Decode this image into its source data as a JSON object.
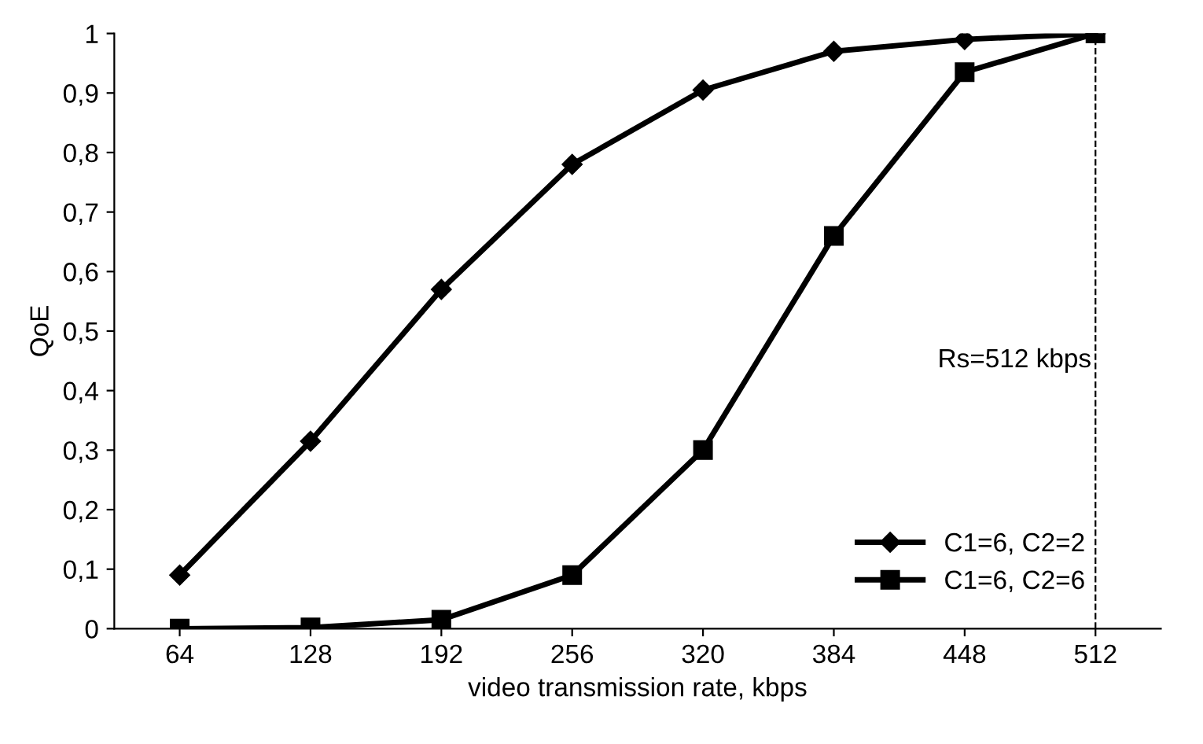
{
  "chart_data": {
    "type": "line",
    "xlabel": "video transmission rate, kbps",
    "ylabel": "QoE",
    "x": [
      64,
      128,
      192,
      256,
      320,
      384,
      448,
      512
    ],
    "series": [
      {
        "name": "C1=6, C2=2",
        "color": "#000000",
        "marker": "diamond",
        "values": [
          0.09,
          0.315,
          0.57,
          0.78,
          0.905,
          0.97,
          0.99,
          1.0
        ]
      },
      {
        "name": "C1=6, C2=6",
        "color": "#000000",
        "marker": "square",
        "values": [
          0.0,
          0.002,
          0.015,
          0.09,
          0.3,
          0.66,
          0.935,
          1.0
        ]
      }
    ],
    "xlim": [
      32,
      544
    ],
    "xticks": [
      64,
      128,
      192,
      256,
      320,
      384,
      448,
      512
    ],
    "ylim": [
      0,
      1
    ],
    "yticks": [
      0,
      {
        "value": 0.1,
        "label": "0,1"
      },
      {
        "value": 0.2,
        "label": "0,2"
      },
      {
        "value": 0.3,
        "label": "0,3"
      },
      {
        "value": 0.4,
        "label": "0,4"
      },
      {
        "value": 0.5,
        "label": "0,5"
      },
      {
        "value": 0.6,
        "label": "0,6"
      },
      {
        "value": 0.7,
        "label": "0,7"
      },
      {
        "value": 0.8,
        "label": "0,8"
      },
      {
        "value": 0.9,
        "label": "0,9"
      },
      1
    ],
    "ref_lines": [
      {
        "axis": "x",
        "value": 512,
        "label": "Rs=512 kbps",
        "color": "#000000",
        "line_style": "dashed"
      }
    ],
    "grid": false,
    "legend": "bottom right",
    "line_style": "solid"
  }
}
